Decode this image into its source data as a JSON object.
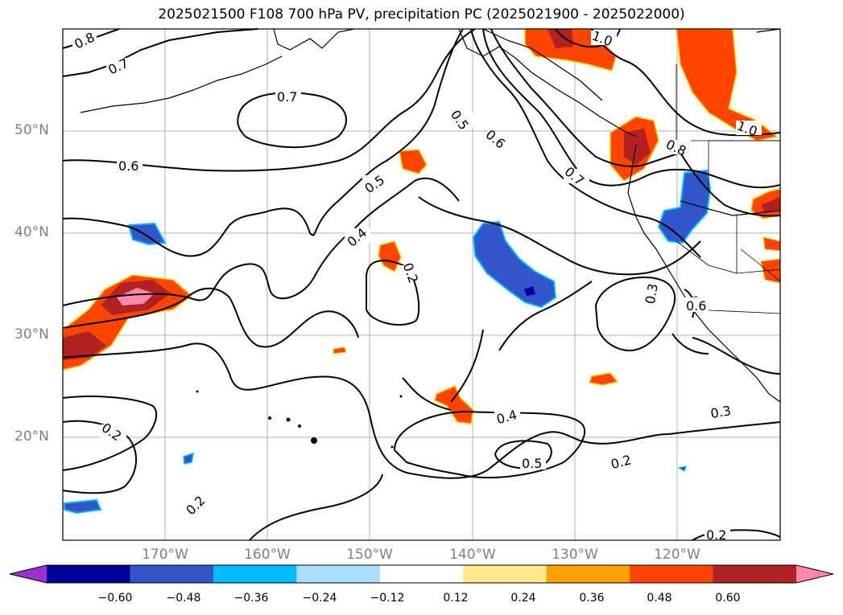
{
  "title": "2025021500 F108 700 hPa PV, precipitation PC (2025021900 - 2025022000)",
  "lat_labels": [
    "50°N",
    "40°N",
    "30°N",
    "20°N"
  ],
  "lon_labels": [
    "170°W",
    "160°W",
    "150°W",
    "140°W",
    "130°W",
    "120°W"
  ],
  "colorbar": {
    "ticks": [
      "−0.60",
      "−0.48",
      "−0.36",
      "−0.24",
      "−0.12",
      "0.12",
      "0.24",
      "0.36",
      "0.48",
      "0.60"
    ],
    "colors": [
      "#9933cc",
      "#000099",
      "#3355cc",
      "#00bbff",
      "#aaddff",
      "#ffffff",
      "#ffe98a",
      "#ff9f00",
      "#ff4400",
      "#b22222",
      "#ff88aa"
    ]
  },
  "contour_labels": [
    "0.8",
    "0.7",
    "0.7",
    "0.6",
    "0.5",
    "0.4",
    "0.2",
    "0.5",
    "0.6",
    "0.7",
    "1.0",
    "1.0",
    "0.8",
    "0.3",
    "0.6",
    "0.2",
    "0.4",
    "0.5",
    "0.3",
    "0.2",
    "0.2",
    "0.2"
  ]
}
